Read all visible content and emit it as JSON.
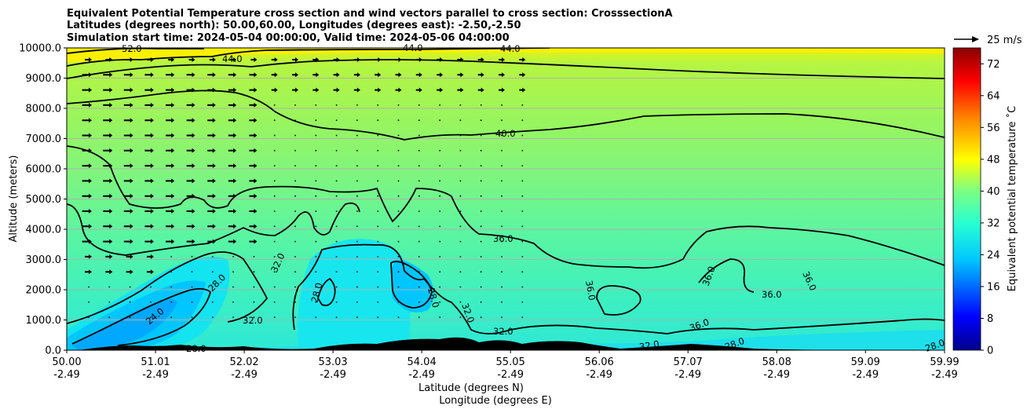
{
  "chart_data": {
    "type": "cross-section contour",
    "title_lines": [
      "Equivalent Potential Temperature cross section and wind vectors parallel to cross section: CrosssectionA",
      "Latitudes (degrees north): 50.00,60.00, Longitudes (degrees east): -2.50,-2.50",
      "Simulation start time: 2024-05-04 00:00:00, Valid time: 2024-05-06 04:00:00"
    ],
    "ylabel": "Altitude (meters)",
    "xlabel_lat": "Latitude (degrees N)",
    "xlabel_lon": "Longitude (degrees E)",
    "ylim": [
      0,
      10000
    ],
    "y_ticks": [
      "0.0",
      "1000.0",
      "2000.0",
      "3000.0",
      "4000.0",
      "5000.0",
      "6000.0",
      "7000.0",
      "8000.0",
      "9000.0",
      "10000.0"
    ],
    "x_range": [
      50.0,
      59.99
    ],
    "x_ticks_lat": [
      "50.00",
      "51.01",
      "52.02",
      "53.03",
      "54.04",
      "55.05",
      "56.06",
      "57.07",
      "58.08",
      "59.09",
      "59.99"
    ],
    "x_ticks_lon": [
      "-2.49",
      "-2.49",
      "-2.49",
      "-2.49",
      "-2.49",
      "-2.49",
      "-2.49",
      "-2.49",
      "-2.49",
      "-2.49",
      "-2.49"
    ],
    "contour_labels": [
      "52.0",
      "44.0",
      "44.0",
      "44.0",
      "40.0",
      "36.0",
      "32.0",
      "28.0",
      "24.0",
      "32.0",
      "28.0",
      "28.0",
      "32.0",
      "32.0",
      "36.0",
      "36.0",
      "36.0",
      "36.0",
      "36.0",
      "32.0",
      "28.0",
      "28.0",
      "28.0"
    ],
    "colorbar": {
      "label": "Equivalent potential temperature ˚C",
      "ticks": [
        "0",
        "8",
        "16",
        "24",
        "32",
        "40",
        "48",
        "56",
        "64",
        "72"
      ],
      "range": [
        0,
        76
      ]
    },
    "quiver_key": "25 m/s"
  }
}
